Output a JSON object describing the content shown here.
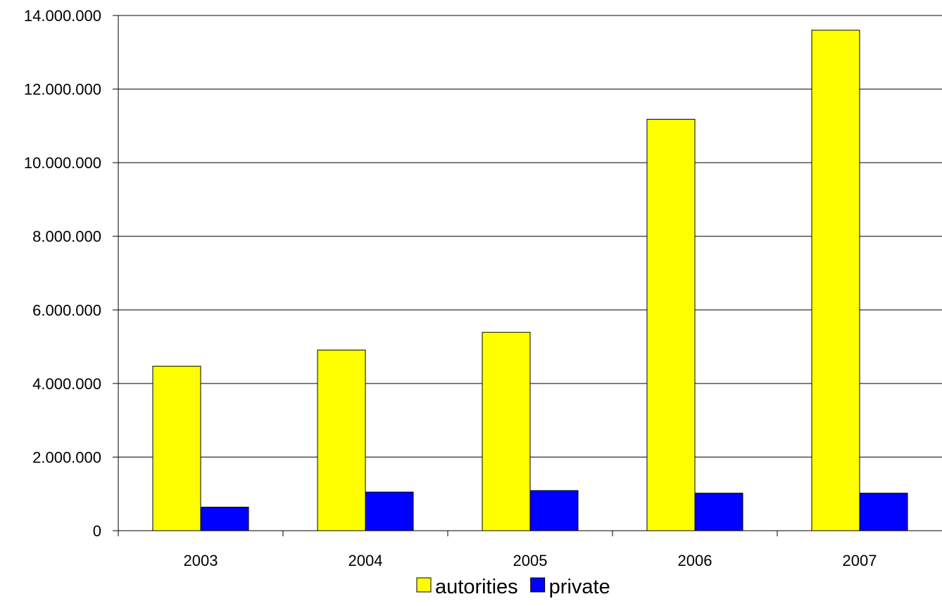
{
  "chart_data": {
    "type": "bar",
    "title": "",
    "xlabel": "",
    "ylabel": "",
    "categories": [
      "2003",
      "2004",
      "2005",
      "2006",
      "2007"
    ],
    "series": [
      {
        "name": "autorities",
        "color": "#FFFF00",
        "values": [
          4470000,
          4910000,
          5390000,
          11180000,
          13600000
        ]
      },
      {
        "name": "private",
        "color": "#0000FF",
        "values": [
          640000,
          1050000,
          1090000,
          1020000,
          1020000
        ]
      }
    ],
    "ylim": [
      0,
      14000000
    ],
    "yticks": [
      0,
      2000000,
      4000000,
      6000000,
      8000000,
      10000000,
      12000000,
      14000000
    ],
    "ytick_labels": [
      "0",
      "2.000.000",
      "4.000.000",
      "6.000.000",
      "8.000.000",
      "10.000.000",
      "12.000.000",
      "14.000.000"
    ],
    "grid": true,
    "legend_position": "bottom-center"
  }
}
